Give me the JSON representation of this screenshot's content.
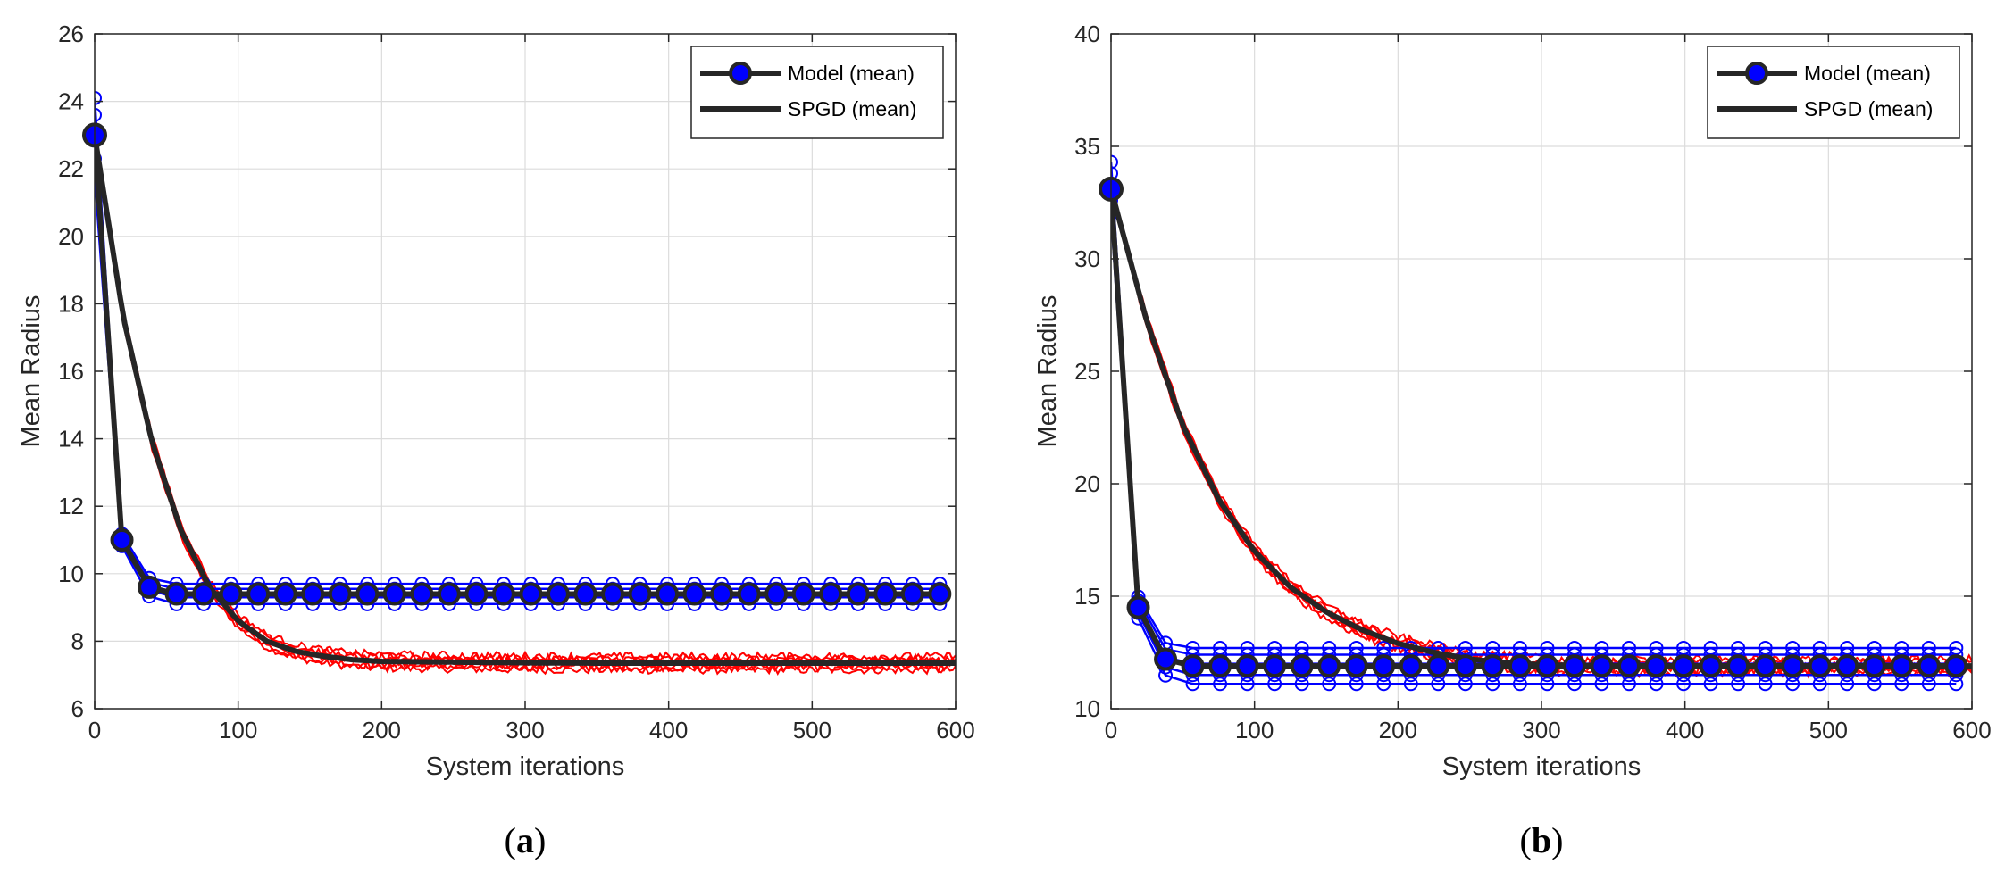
{
  "colors": {
    "model_individual": "#0000ff",
    "spgd_individual": "#ff0000",
    "mean_line": "#262626",
    "mean_marker_fill": "#0000ff",
    "grid": "#dcdcdc",
    "axis": "#262626"
  },
  "chart_data": [
    {
      "panel": "a",
      "type": "line",
      "caption": "(a)",
      "xlabel": "System iterations",
      "ylabel": "Mean Radius",
      "xlim": [
        0,
        600
      ],
      "ylim": [
        6,
        26
      ],
      "xticks": [
        0,
        100,
        200,
        300,
        400,
        500,
        600
      ],
      "yticks": [
        6,
        8,
        10,
        12,
        14,
        16,
        18,
        20,
        22,
        24,
        26
      ],
      "grid": true,
      "legend_position": "top-right",
      "legend": [
        "Model (mean)",
        "SPGD (mean)"
      ],
      "model_marker_step": 19,
      "model_individual_start": [
        21.8,
        22.3,
        23.0,
        23.6,
        24.1
      ],
      "model_individual_plateau": [
        9.1,
        9.3,
        9.4,
        9.55,
        9.7
      ],
      "series": [
        {
          "name": "Model (mean)",
          "x": [
            0,
            19,
            38,
            57,
            76,
            95,
            114,
            133,
            152,
            171,
            190,
            209,
            228,
            247,
            266,
            285,
            304,
            323,
            342,
            361,
            380,
            399,
            418,
            437,
            456,
            475,
            494,
            513,
            532,
            551,
            570,
            589
          ],
          "values": [
            23.0,
            11.0,
            9.6,
            9.4,
            9.4,
            9.4,
            9.4,
            9.4,
            9.4,
            9.4,
            9.4,
            9.4,
            9.4,
            9.4,
            9.4,
            9.4,
            9.4,
            9.4,
            9.4,
            9.4,
            9.4,
            9.4,
            9.4,
            9.4,
            9.4,
            9.4,
            9.4,
            9.4,
            9.4,
            9.4,
            9.4,
            9.4
          ]
        },
        {
          "name": "SPGD (mean)",
          "x": [
            0,
            20,
            40,
            60,
            80,
            100,
            120,
            140,
            160,
            180,
            200,
            250,
            300,
            350,
            400,
            450,
            500,
            550,
            600
          ],
          "values": [
            23.0,
            17.6,
            13.9,
            11.3,
            9.6,
            8.6,
            8.0,
            7.7,
            7.55,
            7.45,
            7.4,
            7.38,
            7.36,
            7.35,
            7.35,
            7.35,
            7.35,
            7.35,
            7.35
          ]
        }
      ]
    },
    {
      "panel": "b",
      "type": "line",
      "caption": "(b)",
      "xlabel": "System iterations",
      "ylabel": "Mean Radius",
      "xlim": [
        0,
        600
      ],
      "ylim": [
        10,
        40
      ],
      "xticks": [
        0,
        100,
        200,
        300,
        400,
        500,
        600
      ],
      "yticks": [
        10,
        15,
        20,
        25,
        30,
        35,
        40
      ],
      "grid": true,
      "legend_position": "top-right",
      "legend": [
        "Model (mean)",
        "SPGD (mean)"
      ],
      "model_marker_step": 19,
      "model_individual_start": [
        32.0,
        32.6,
        33.2,
        33.8,
        34.3
      ],
      "model_individual_plateau": [
        11.1,
        11.5,
        12.0,
        12.4,
        12.7
      ],
      "series": [
        {
          "name": "Model (mean)",
          "x": [
            0,
            19,
            38,
            57,
            76,
            95,
            114,
            133,
            152,
            171,
            190,
            209,
            228,
            247,
            266,
            285,
            304,
            323,
            342,
            361,
            380,
            399,
            418,
            437,
            456,
            475,
            494,
            513,
            532,
            551,
            570,
            589
          ],
          "values": [
            33.1,
            14.5,
            12.2,
            11.9,
            11.9,
            11.9,
            11.9,
            11.9,
            11.9,
            11.9,
            11.9,
            11.9,
            11.9,
            11.9,
            11.9,
            11.9,
            11.9,
            11.9,
            11.9,
            11.9,
            11.9,
            11.9,
            11.9,
            11.9,
            11.9,
            11.9,
            11.9,
            11.9,
            11.9,
            11.9,
            11.9,
            11.9
          ]
        },
        {
          "name": "SPGD (mean)",
          "x": [
            0,
            25,
            50,
            75,
            100,
            125,
            150,
            175,
            200,
            225,
            250,
            275,
            300,
            350,
            400,
            450,
            500,
            550,
            600
          ],
          "values": [
            33.1,
            27.2,
            22.6,
            19.3,
            17.0,
            15.4,
            14.3,
            13.5,
            12.9,
            12.5,
            12.2,
            12.05,
            11.95,
            11.9,
            11.9,
            11.9,
            11.9,
            11.9,
            11.9
          ]
        }
      ]
    }
  ]
}
